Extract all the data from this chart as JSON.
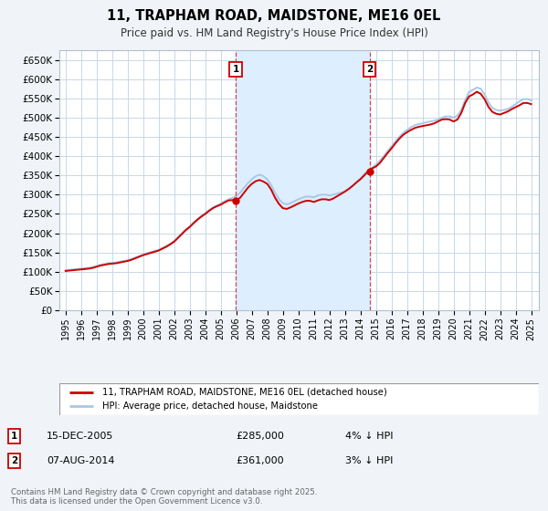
{
  "title": "11, TRAPHAM ROAD, MAIDSTONE, ME16 0EL",
  "subtitle": "Price paid vs. HM Land Registry's House Price Index (HPI)",
  "background_color": "#f0f4f8",
  "plot_bg_color": "#ffffff",
  "grid_color": "#c8d8e8",
  "ylim": [
    0,
    675000
  ],
  "xlim_start": 1994.6,
  "xlim_end": 2025.5,
  "yticks": [
    0,
    50000,
    100000,
    150000,
    200000,
    250000,
    300000,
    350000,
    400000,
    450000,
    500000,
    550000,
    600000,
    650000
  ],
  "ytick_labels": [
    "£0",
    "£50K",
    "£100K",
    "£150K",
    "£200K",
    "£250K",
    "£300K",
    "£350K",
    "£400K",
    "£450K",
    "£500K",
    "£550K",
    "£600K",
    "£650K"
  ],
  "xticks": [
    1995,
    1996,
    1997,
    1998,
    1999,
    2000,
    2001,
    2002,
    2003,
    2004,
    2005,
    2006,
    2007,
    2008,
    2009,
    2010,
    2011,
    2012,
    2013,
    2014,
    2015,
    2016,
    2017,
    2018,
    2019,
    2020,
    2021,
    2022,
    2023,
    2024,
    2025
  ],
  "sale1_x": 2005.958,
  "sale1_y": 285000,
  "sale1_label": "1",
  "sale1_date": "15-DEC-2005",
  "sale1_price": "£285,000",
  "sale1_hpi": "4% ↓ HPI",
  "sale2_x": 2014.583,
  "sale2_y": 361000,
  "sale2_label": "2",
  "sale2_date": "07-AUG-2014",
  "sale2_price": "£361,000",
  "sale2_hpi": "3% ↓ HPI",
  "hpi_color": "#a8c8e8",
  "price_color": "#cc0000",
  "vspan_color": "#ddeeff",
  "legend1_label": "11, TRAPHAM ROAD, MAIDSTONE, ME16 0EL (detached house)",
  "legend2_label": "HPI: Average price, detached house, Maidstone",
  "footer": "Contains HM Land Registry data © Crown copyright and database right 2025.\nThis data is licensed under the Open Government Licence v3.0.",
  "hpi_data_x": [
    1995.0,
    1995.25,
    1995.5,
    1995.75,
    1996.0,
    1996.25,
    1996.5,
    1996.75,
    1997.0,
    1997.25,
    1997.5,
    1997.75,
    1998.0,
    1998.25,
    1998.5,
    1998.75,
    1999.0,
    1999.25,
    1999.5,
    1999.75,
    2000.0,
    2000.25,
    2000.5,
    2000.75,
    2001.0,
    2001.25,
    2001.5,
    2001.75,
    2002.0,
    2002.25,
    2002.5,
    2002.75,
    2003.0,
    2003.25,
    2003.5,
    2003.75,
    2004.0,
    2004.25,
    2004.5,
    2004.75,
    2005.0,
    2005.25,
    2005.5,
    2005.75,
    2006.0,
    2006.25,
    2006.5,
    2006.75,
    2007.0,
    2007.25,
    2007.5,
    2007.75,
    2008.0,
    2008.25,
    2008.5,
    2008.75,
    2009.0,
    2009.25,
    2009.5,
    2009.75,
    2010.0,
    2010.25,
    2010.5,
    2010.75,
    2011.0,
    2011.25,
    2011.5,
    2011.75,
    2012.0,
    2012.25,
    2012.5,
    2012.75,
    2013.0,
    2013.25,
    2013.5,
    2013.75,
    2014.0,
    2014.25,
    2014.5,
    2014.75,
    2015.0,
    2015.25,
    2015.5,
    2015.75,
    2016.0,
    2016.25,
    2016.5,
    2016.75,
    2017.0,
    2017.25,
    2017.5,
    2017.75,
    2018.0,
    2018.25,
    2018.5,
    2018.75,
    2019.0,
    2019.25,
    2019.5,
    2019.75,
    2020.0,
    2020.25,
    2020.5,
    2020.75,
    2021.0,
    2021.25,
    2021.5,
    2021.75,
    2022.0,
    2022.25,
    2022.5,
    2022.75,
    2023.0,
    2023.25,
    2023.5,
    2023.75,
    2024.0,
    2024.25,
    2024.5,
    2024.75,
    2025.0
  ],
  "hpi_data_y": [
    104000,
    105000,
    106000,
    107000,
    108000,
    109000,
    110000,
    112000,
    115000,
    118000,
    120000,
    122000,
    123000,
    124000,
    126000,
    128000,
    130000,
    133000,
    137000,
    141000,
    145000,
    148000,
    151000,
    154000,
    157000,
    162000,
    167000,
    173000,
    180000,
    190000,
    200000,
    210000,
    218000,
    228000,
    237000,
    245000,
    252000,
    260000,
    267000,
    272000,
    277000,
    283000,
    288000,
    292000,
    296000,
    305000,
    318000,
    330000,
    340000,
    348000,
    352000,
    348000,
    340000,
    325000,
    305000,
    288000,
    278000,
    275000,
    278000,
    283000,
    288000,
    292000,
    295000,
    295000,
    293000,
    298000,
    300000,
    300000,
    298000,
    300000,
    303000,
    305000,
    308000,
    315000,
    323000,
    332000,
    342000,
    353000,
    362000,
    370000,
    378000,
    388000,
    400000,
    413000,
    425000,
    438000,
    450000,
    460000,
    468000,
    475000,
    480000,
    483000,
    485000,
    488000,
    490000,
    492000,
    495000,
    500000,
    503000,
    503000,
    500000,
    505000,
    520000,
    545000,
    567000,
    572000,
    578000,
    575000,
    560000,
    540000,
    525000,
    520000,
    518000,
    520000,
    522000,
    528000,
    535000,
    542000,
    548000,
    548000,
    545000
  ],
  "price_data_x": [
    1995.0,
    1995.25,
    1995.5,
    1995.75,
    1996.0,
    1996.25,
    1996.5,
    1996.75,
    1997.0,
    1997.25,
    1997.5,
    1997.75,
    1998.0,
    1998.25,
    1998.5,
    1998.75,
    1999.0,
    1999.25,
    1999.5,
    1999.75,
    2000.0,
    2000.25,
    2000.5,
    2000.75,
    2001.0,
    2001.25,
    2001.5,
    2001.75,
    2002.0,
    2002.25,
    2002.5,
    2002.75,
    2003.0,
    2003.25,
    2003.5,
    2003.75,
    2004.0,
    2004.25,
    2004.5,
    2004.75,
    2005.0,
    2005.25,
    2005.5,
    2005.75,
    2006.0,
    2006.25,
    2006.5,
    2006.75,
    2007.0,
    2007.25,
    2007.5,
    2007.75,
    2008.0,
    2008.25,
    2008.5,
    2008.75,
    2009.0,
    2009.25,
    2009.5,
    2009.75,
    2010.0,
    2010.25,
    2010.5,
    2010.75,
    2011.0,
    2011.25,
    2011.5,
    2011.75,
    2012.0,
    2012.25,
    2012.5,
    2012.75,
    2013.0,
    2013.25,
    2013.5,
    2013.75,
    2014.0,
    2014.25,
    2014.5,
    2014.75,
    2015.0,
    2015.25,
    2015.5,
    2015.75,
    2016.0,
    2016.25,
    2016.5,
    2016.75,
    2017.0,
    2017.25,
    2017.5,
    2017.75,
    2018.0,
    2018.25,
    2018.5,
    2018.75,
    2019.0,
    2019.25,
    2019.5,
    2019.75,
    2020.0,
    2020.25,
    2020.5,
    2020.75,
    2021.0,
    2021.25,
    2021.5,
    2021.75,
    2022.0,
    2022.25,
    2022.5,
    2022.75,
    2023.0,
    2023.25,
    2023.5,
    2023.75,
    2024.0,
    2024.25,
    2024.5,
    2024.75,
    2025.0
  ],
  "price_data_y": [
    102000,
    103000,
    104000,
    105000,
    106000,
    107000,
    108000,
    110000,
    113000,
    116000,
    118000,
    120000,
    121000,
    122000,
    124000,
    126000,
    128000,
    131000,
    135000,
    139000,
    143000,
    146000,
    149000,
    152000,
    155000,
    160000,
    165000,
    171000,
    178000,
    188000,
    198000,
    208000,
    216000,
    226000,
    235000,
    243000,
    250000,
    258000,
    265000,
    270000,
    274000,
    280000,
    285000,
    286000,
    285000,
    292000,
    305000,
    318000,
    328000,
    335000,
    338000,
    334000,
    328000,
    313000,
    292000,
    276000,
    265000,
    263000,
    267000,
    272000,
    277000,
    281000,
    284000,
    284000,
    281000,
    285000,
    288000,
    288000,
    286000,
    290000,
    296000,
    302000,
    308000,
    315000,
    323000,
    332000,
    340000,
    350000,
    361000,
    368000,
    373000,
    382000,
    395000,
    408000,
    420000,
    433000,
    445000,
    455000,
    462000,
    468000,
    473000,
    476000,
    478000,
    480000,
    482000,
    485000,
    490000,
    495000,
    496000,
    495000,
    490000,
    495000,
    512000,
    538000,
    555000,
    560000,
    567000,
    562000,
    548000,
    528000,
    515000,
    510000,
    508000,
    512000,
    516000,
    522000,
    527000,
    532000,
    538000,
    538000,
    535000
  ]
}
